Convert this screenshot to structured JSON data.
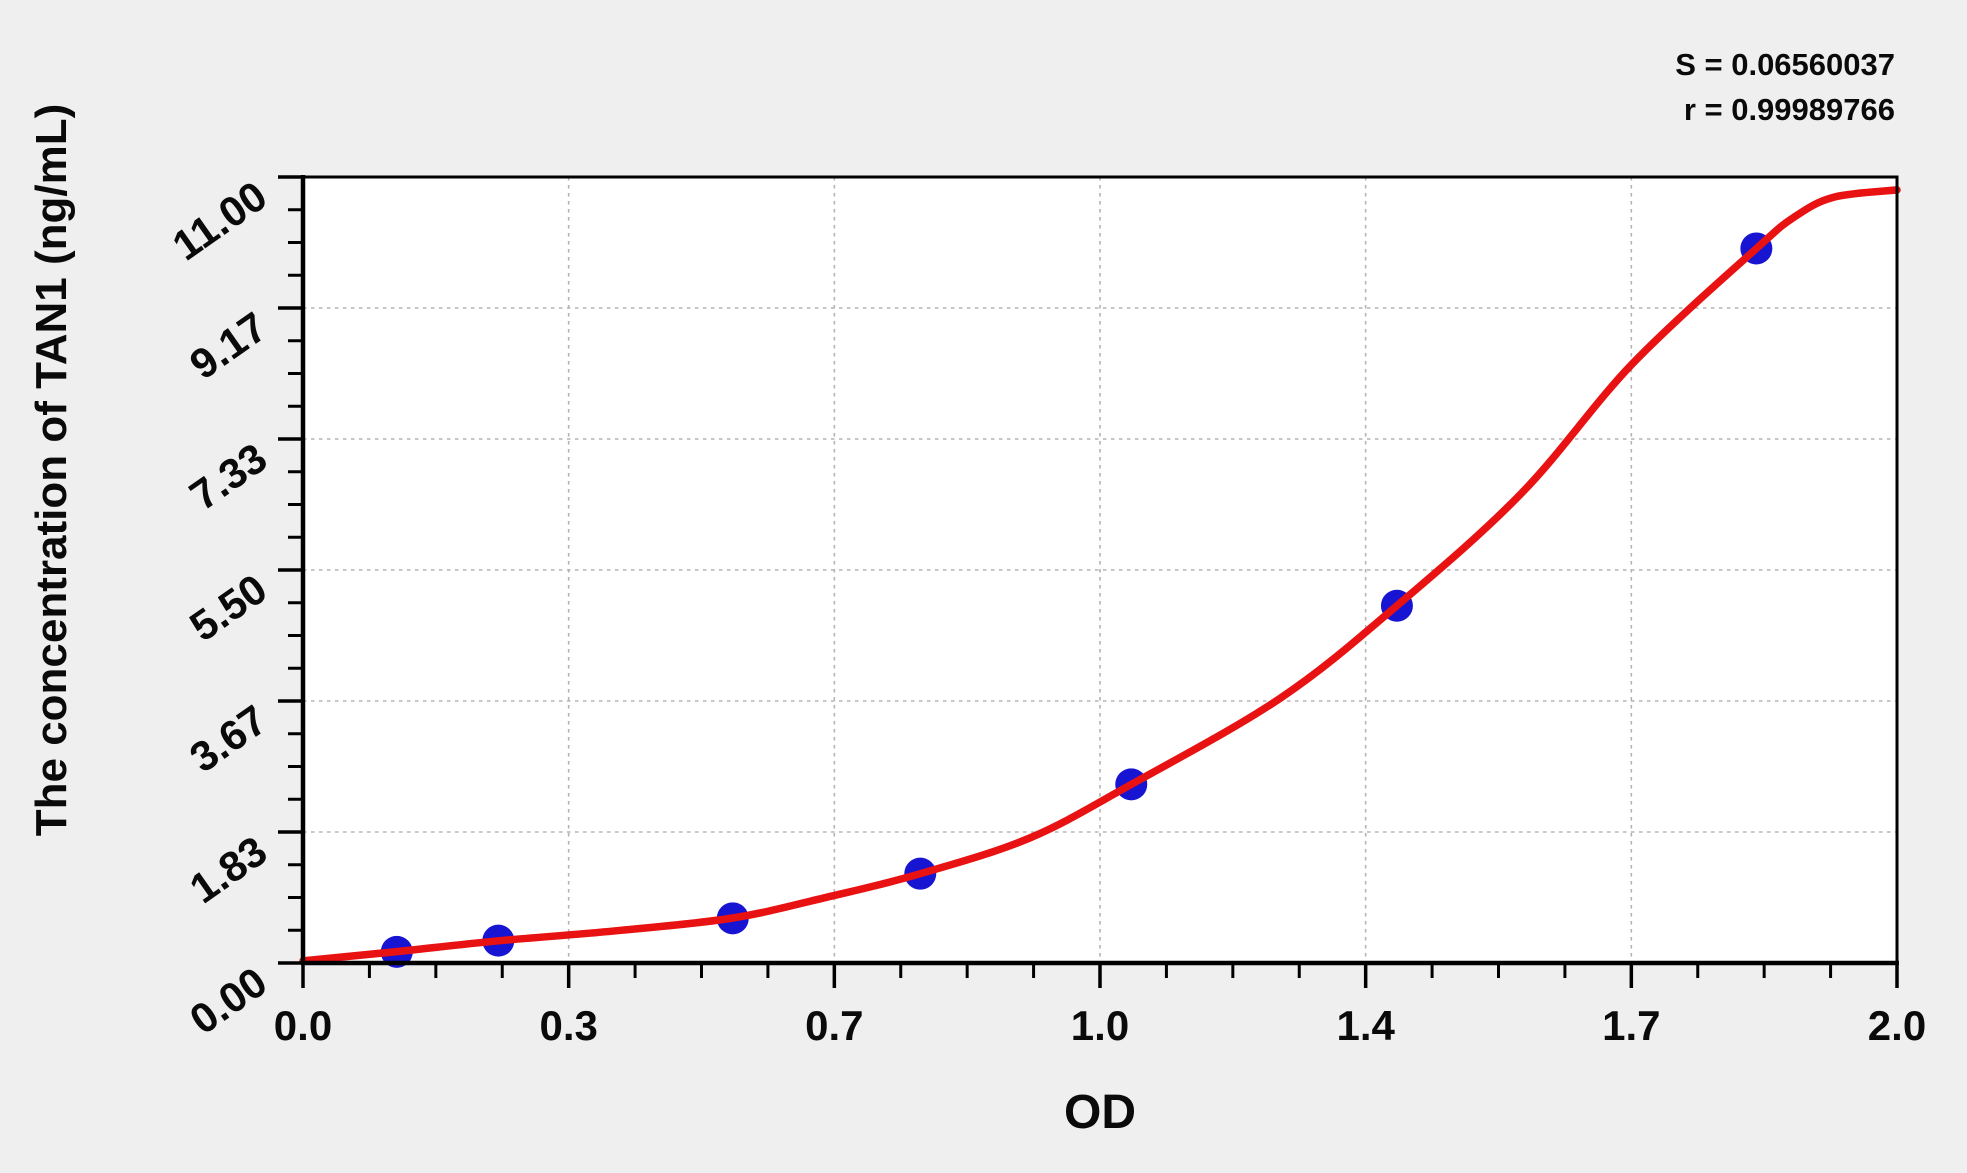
{
  "chart_data": {
    "type": "scatter",
    "title": "",
    "xlabel": "OD",
    "ylabel": "The concentration of TAN1 (ng/mL)",
    "xlim": [
      0,
      2.04
    ],
    "ylim": [
      0,
      11
    ],
    "x_tick_labels": [
      "0.0",
      "0.3",
      "0.7",
      "1.0",
      "1.4",
      "1.7",
      "2.0"
    ],
    "y_tick_labels": [
      "0.00",
      "1.83",
      "3.67",
      "5.50",
      "7.33",
      "9.17",
      "11.00"
    ],
    "minor_divisions_per_interval": 4,
    "grid": "major-dashed",
    "legend_position": "none",
    "stats": {
      "s": "S = 0.06560037",
      "r": "r = 0.99989766"
    },
    "series": [
      {
        "name": "standard-points",
        "type": "scatter",
        "marker": "filled-circle",
        "color": "#1714d2",
        "od": [
          0.12,
          0.25,
          0.55,
          0.79,
          1.06,
          1.4,
          1.86
        ],
        "conc": [
          0.156,
          0.313,
          0.625,
          1.25,
          2.5,
          5.0,
          10.0
        ]
      },
      {
        "name": "fitted-curve",
        "type": "line",
        "color": "#e91212",
        "od": [
          0.0,
          0.12,
          0.25,
          0.4,
          0.55,
          0.67,
          0.79,
          0.93,
          1.06,
          1.25,
          1.4,
          1.56,
          1.7,
          1.86,
          1.91,
          1.96,
          2.04
        ],
        "conc": [
          0.03,
          0.16,
          0.31,
          0.45,
          0.63,
          0.92,
          1.25,
          1.75,
          2.5,
          3.7,
          5.0,
          6.58,
          8.37,
          10.0,
          10.45,
          10.72,
          10.82
        ]
      }
    ],
    "colors": {
      "grid": "#b3b3b3",
      "axis": "#000000",
      "plot_background": "#ffffff",
      "page_background": "#efefef",
      "text": "#0a0a0a"
    }
  }
}
